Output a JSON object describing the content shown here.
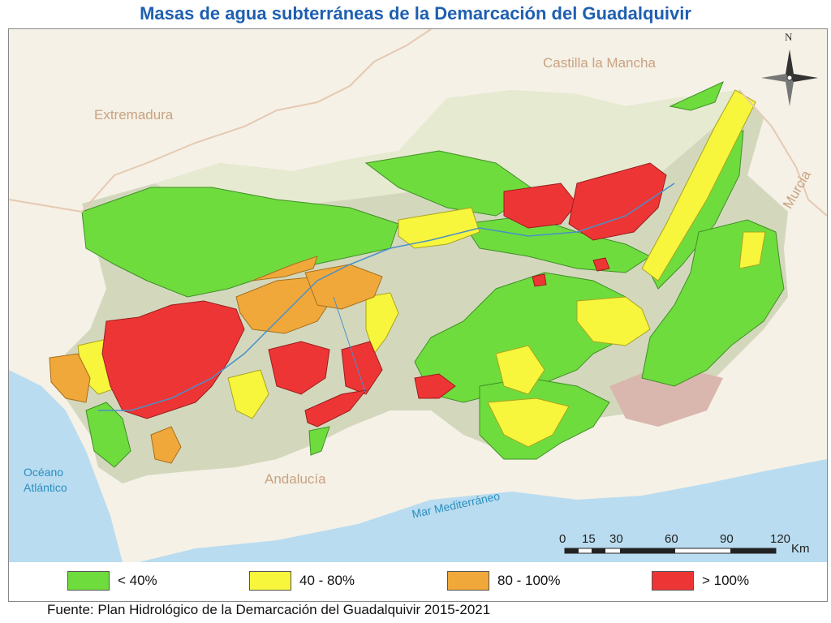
{
  "title": "Masas de agua subterráneas de la Demarcación del Guadalquivir",
  "regions": {
    "castilla": "Castilla la Mancha",
    "extremadura": "Extremadura",
    "murcia": "Murcia",
    "andalucia": "Andalucía"
  },
  "seas": {
    "oceano_line1": "Océano",
    "oceano_line2": "Atlántico",
    "mediterraneo": "Mar Mediterráneo"
  },
  "compass": {
    "north_label": "N",
    "icon": "compass-rose-icon"
  },
  "scale_bar": {
    "ticks": [
      "0",
      "15",
      "30",
      "60",
      "90",
      "120"
    ],
    "unit": "Km"
  },
  "legend": {
    "items": [
      {
        "label": "< 40%",
        "color": "#6fdc3e"
      },
      {
        "label": "40 - 80%",
        "color": "#f7f53c"
      },
      {
        "label": "80 - 100%",
        "color": "#f0a83a"
      },
      {
        "label": "> 100%",
        "color": "#ee3535"
      }
    ]
  },
  "source": "Fuente: Plan Hidrológico de la Demarcación del Guadalquivir 2015-2021"
}
